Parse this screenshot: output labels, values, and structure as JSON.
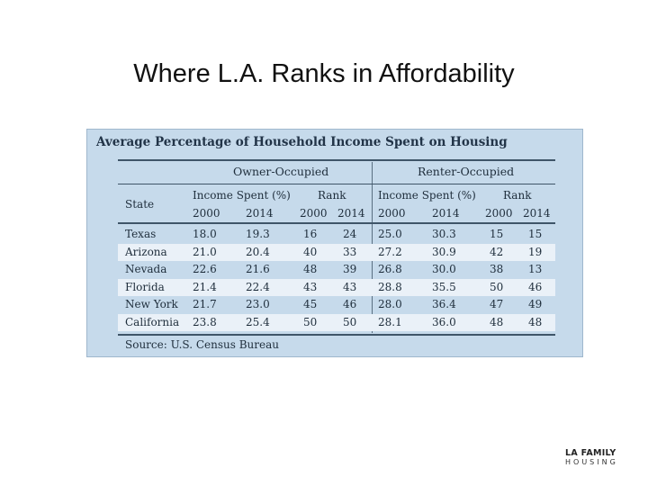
{
  "slide": {
    "title": "Where L.A. Ranks in Affordability"
  },
  "table": {
    "heading": "Average Percentage of Household Income Spent on Housing",
    "group_owner": "Owner-Occupied",
    "group_renter": "Renter-Occupied",
    "state_label": "State",
    "income_label": "Income Spent (%)",
    "rank_label": "Rank",
    "year_a": "2000",
    "year_b": "2014",
    "rows": [
      {
        "state": "Texas",
        "o_inc_2000": "18.0",
        "o_inc_2014": "19.3",
        "o_rank_2000": "16",
        "o_rank_2014": "24",
        "r_inc_2000": "25.0",
        "r_inc_2014": "30.3",
        "r_rank_2000": "15",
        "r_rank_2014": "15"
      },
      {
        "state": "Arizona",
        "o_inc_2000": "21.0",
        "o_inc_2014": "20.4",
        "o_rank_2000": "40",
        "o_rank_2014": "33",
        "r_inc_2000": "27.2",
        "r_inc_2014": "30.9",
        "r_rank_2000": "42",
        "r_rank_2014": "19"
      },
      {
        "state": "Nevada",
        "o_inc_2000": "22.6",
        "o_inc_2014": "21.6",
        "o_rank_2000": "48",
        "o_rank_2014": "39",
        "r_inc_2000": "26.8",
        "r_inc_2014": "30.0",
        "r_rank_2000": "38",
        "r_rank_2014": "13"
      },
      {
        "state": "Florida",
        "o_inc_2000": "21.4",
        "o_inc_2014": "22.4",
        "o_rank_2000": "43",
        "o_rank_2014": "43",
        "r_inc_2000": "28.8",
        "r_inc_2014": "35.5",
        "r_rank_2000": "50",
        "r_rank_2014": "46"
      },
      {
        "state": "New York",
        "o_inc_2000": "21.7",
        "o_inc_2014": "23.0",
        "o_rank_2000": "45",
        "o_rank_2014": "46",
        "r_inc_2000": "28.0",
        "r_inc_2014": "36.4",
        "r_rank_2000": "47",
        "r_rank_2014": "49"
      },
      {
        "state": "California",
        "o_inc_2000": "23.8",
        "o_inc_2014": "25.4",
        "o_rank_2000": "50",
        "o_rank_2014": "50",
        "r_inc_2000": "28.1",
        "r_inc_2014": "36.0",
        "r_rank_2000": "48",
        "r_rank_2014": "48"
      }
    ],
    "source": "Source: U.S. Census Bureau"
  },
  "logo": {
    "line1": "LA FAMILY",
    "line2": "HOUSING"
  }
}
